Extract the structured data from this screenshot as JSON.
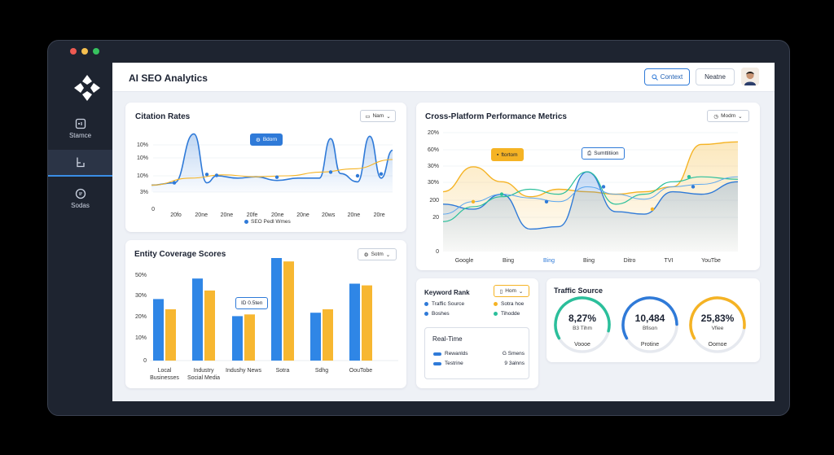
{
  "window": {
    "dot_colors": [
      "#ee5a52",
      "#f5bf4f",
      "#37c25f"
    ]
  },
  "sidebar": {
    "items": [
      {
        "label": "Stamce",
        "icon": "share-icon"
      },
      {
        "label": "",
        "icon": "document-icon"
      },
      {
        "label": "Sodas",
        "icon": "chat-icon"
      }
    ]
  },
  "header": {
    "title": "AI SEO Analytics",
    "context_button": "Context",
    "neutral_button": "Neatne"
  },
  "citation": {
    "title": "Citation Rates",
    "dropdown": "Nam",
    "tooltip": "Bdorn",
    "legend": "SEO  Pedl Wmes",
    "y_ticks": [
      "10%",
      "10%",
      "10%",
      "3%",
      "0"
    ],
    "x_ticks": [
      "20fo",
      "20ne",
      "20ne",
      "20fe",
      "20ne",
      "20ne",
      "20ws",
      "20ne",
      "20re"
    ]
  },
  "entity": {
    "title": "Entity Coverage Scores",
    "dropdown": "Sotm",
    "tooltip": "ID 0.5ten",
    "y_ticks": [
      "50%",
      "30%",
      "20%",
      "10%",
      "0"
    ]
  },
  "cross": {
    "title": "Cross-Platform Performance Metrics",
    "dropdown": "Modm",
    "tooltip_a": "ftortom",
    "tooltip_b": "Sumttitiion",
    "y_ticks": [
      "20%",
      "60%",
      "30%",
      "30%",
      "200",
      "20",
      "0"
    ],
    "x_ticks": [
      "Google",
      "Bing",
      "Bing",
      "Bing",
      "Ditro",
      "TVI",
      "YouTbe"
    ]
  },
  "keyword": {
    "title": "Keyword Rank",
    "dropdown": "Hom",
    "legend": [
      {
        "label": "Traffic Source",
        "color": "#2f7ad8"
      },
      {
        "label": "Sotra hoe",
        "color": "#f5b324"
      },
      {
        "label": "Boshes",
        "color": "#2f7ad8"
      },
      {
        "label": "Tihodde",
        "color": "#2bbf9b"
      }
    ],
    "realtime": {
      "title": "Real-Time",
      "rows": [
        {
          "label": "Rewanlds",
          "value": "G Smens"
        },
        {
          "label": "Testrine",
          "value": "9 3alnns"
        }
      ]
    }
  },
  "traffic": {
    "title": "Traffic Source",
    "rings": [
      {
        "value": "8,27%",
        "sub": "B3 Tihm",
        "caption": "Voooe",
        "color": "#2bbf9b",
        "fill": 0.62
      },
      {
        "value": "10,484",
        "sub": "Bfison",
        "caption": "Protine",
        "color": "#2f7ad8",
        "fill": 0.58
      },
      {
        "value": "25,83%",
        "sub": "Vfiee",
        "caption": "Oomoe",
        "color": "#f5b324",
        "fill": 0.6
      }
    ]
  },
  "chart_data": [
    {
      "type": "line",
      "title": "Citation Rates",
      "x": [
        "20fo",
        "20ne",
        "20ne",
        "20fe",
        "20ne",
        "20ne",
        "20ws",
        "20ne",
        "20re"
      ],
      "series": [
        {
          "name": "SEO",
          "values": [
            2,
            12,
            3,
            2.5,
            2,
            2,
            2,
            10,
            3
          ]
        },
        {
          "name": "Pedl Wmes",
          "values": [
            2,
            3,
            3,
            3,
            4,
            4,
            4,
            5,
            6
          ]
        }
      ],
      "ylim": [
        0,
        14
      ]
    },
    {
      "type": "bar",
      "title": "Entity Coverage Scores",
      "categories": [
        "Local Businesses",
        "Industry Social Media",
        "Indushy News",
        "Sotra",
        "Sdhg",
        "OouTobe"
      ],
      "series": [
        {
          "values": [
            36,
            48,
            26,
            60,
            28,
            45
          ]
        },
        {
          "values": [
            30,
            41,
            27,
            58,
            30,
            44
          ]
        }
      ],
      "ylim": [
        0,
        60
      ]
    },
    {
      "type": "line",
      "title": "Cross-Platform Performance Metrics",
      "categories": [
        "Google",
        "Bing",
        "Bing",
        "Bing",
        "Ditro",
        "TVI",
        "YouTbe"
      ],
      "series": [
        {
          "values": [
            100,
            300,
            200,
            310,
            150,
            120,
            480
          ]
        },
        {
          "values": [
            160,
            250,
            180,
            380,
            180,
            300,
            280
          ]
        },
        {
          "values": [
            50,
            230,
            260,
            230,
            210,
            420,
            240
          ]
        },
        {
          "values": [
            180,
            210,
            230,
            270,
            200,
            280,
            300
          ]
        }
      ],
      "ylim": [
        0,
        500
      ]
    }
  ]
}
